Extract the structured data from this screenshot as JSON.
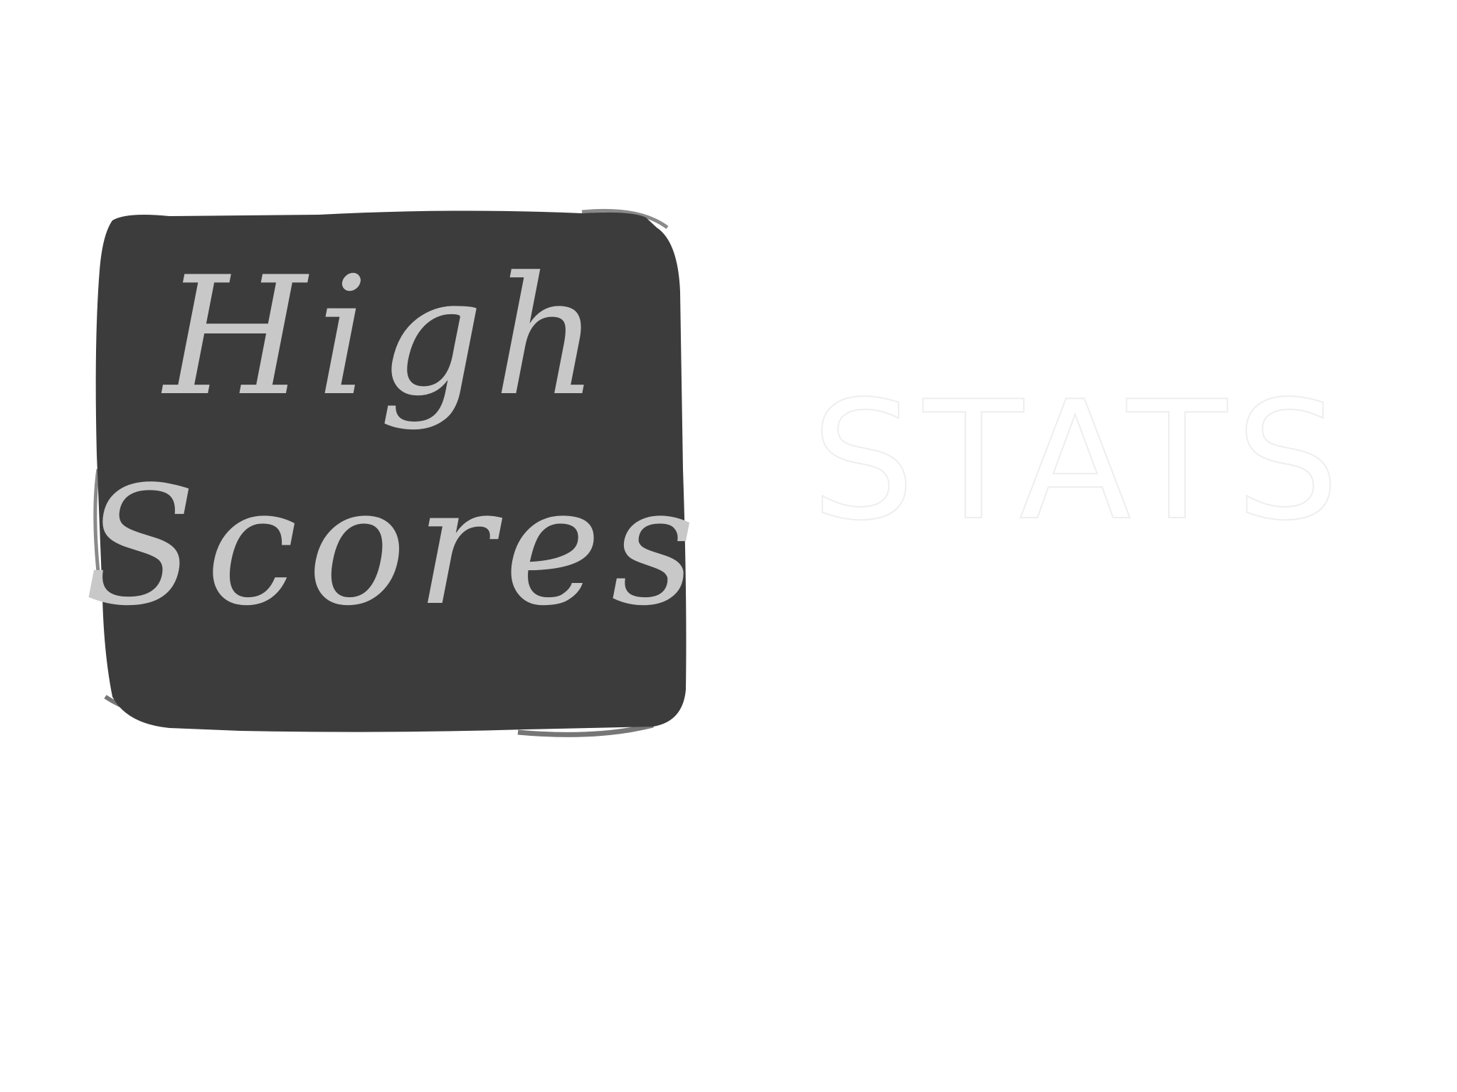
{
  "menu": {
    "high_scores": {
      "line1": "High",
      "line2": "Scores",
      "fill_color": "#3c3c3c",
      "text_color": "#c8c8c8"
    },
    "stats": {
      "label": "STATS",
      "stroke_color": "#eeeeee"
    }
  },
  "background_color": "#ffffff"
}
